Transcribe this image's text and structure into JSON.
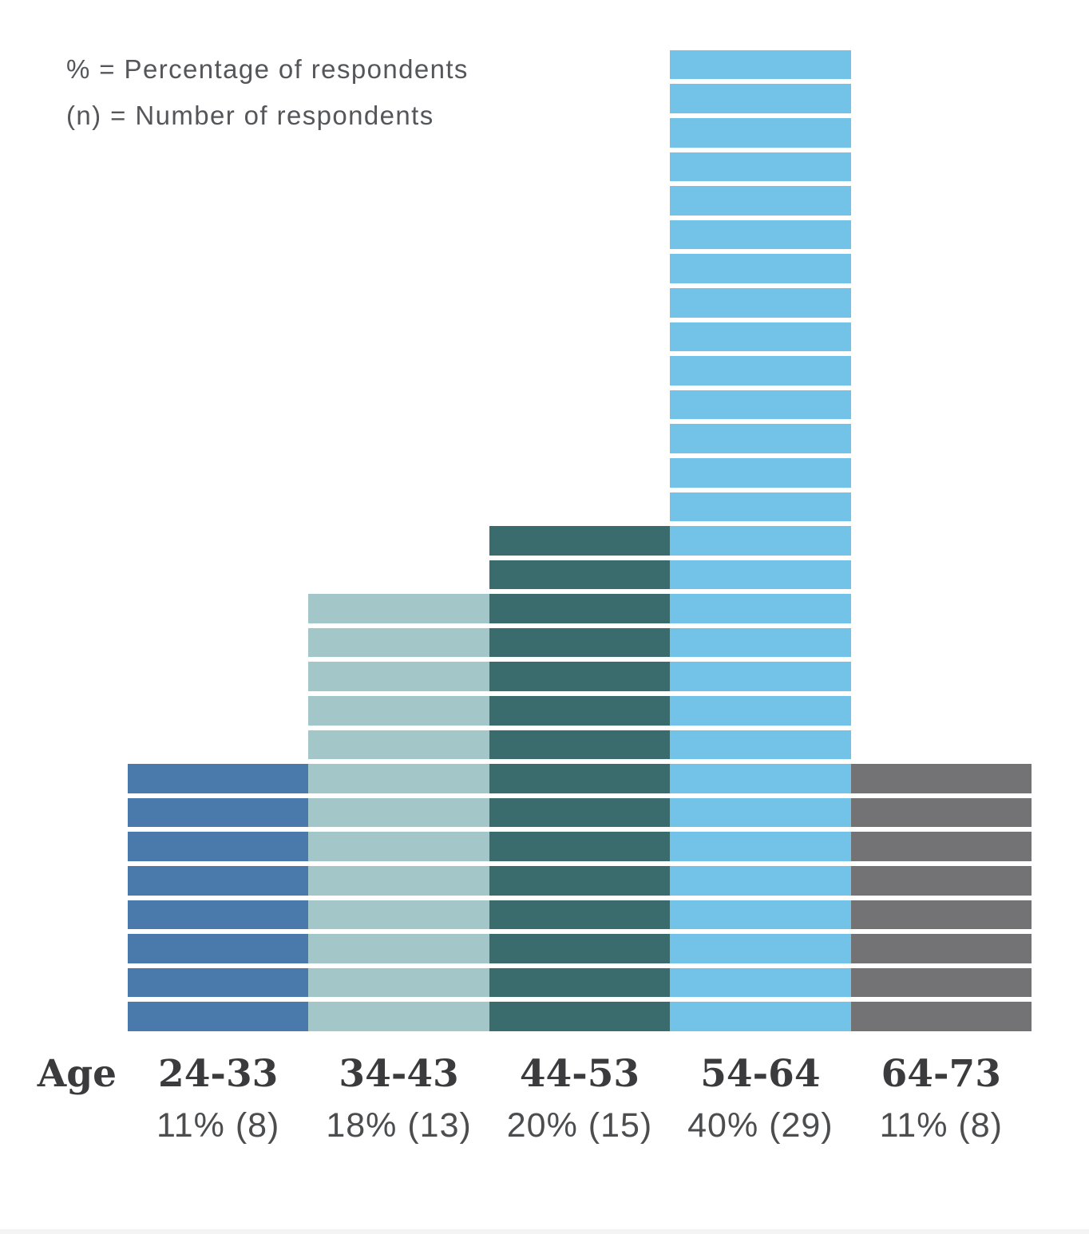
{
  "legend": {
    "line1": "% = Percentage of respondents",
    "line2": "(n) = Number of respondents"
  },
  "axis": {
    "label": "Age"
  },
  "chart_data": {
    "type": "bar",
    "variant": "unit-segmented-histogram",
    "title": "",
    "xlabel": "Age",
    "ylabel": "",
    "grid": false,
    "legend_position": "top-left",
    "categories": [
      "24-33",
      "34-43",
      "44-53",
      "54-64",
      "64-73"
    ],
    "series": [
      {
        "name": "Percentage of respondents",
        "unit": "%",
        "values": [
          11,
          18,
          20,
          40,
          11
        ]
      },
      {
        "name": "Number of respondents",
        "unit": "n",
        "values": [
          8,
          13,
          15,
          29,
          8
        ]
      }
    ],
    "value_labels": [
      "11% (8)",
      "18% (13)",
      "20% (15)",
      "40% (29)",
      "11% (8)"
    ],
    "bar_colors": [
      "#4a7aab",
      "#a3c6c9",
      "#3a6b6d",
      "#73c3e9",
      "#737375"
    ],
    "notes": "Each bar is built of one horizontal segment per respondent (n segments per bar), separated by white gaps; all bars share a common baseline."
  },
  "colors": {
    "legend_text": "#55565a",
    "range_label_text": "#3b3b3d",
    "pct_label_text": "#4c4d4f",
    "footer_strip": "#f4f4f5",
    "background": "#ffffff"
  }
}
